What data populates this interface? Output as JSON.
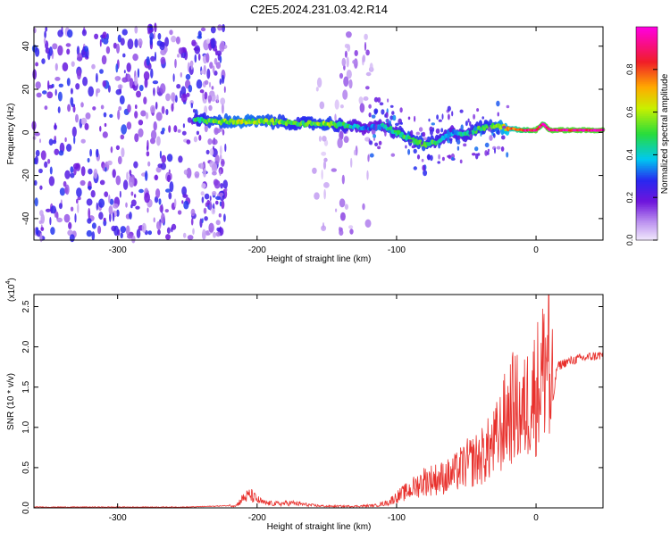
{
  "title": "C2E5.2024.231.03.42.R14",
  "chart_data": [
    {
      "type": "heatmap",
      "xlabel": "Height of straight line (km)",
      "ylabel": "Frequency (Hz)",
      "xlim": [
        -360,
        48
      ],
      "ylim": [
        -50,
        49
      ],
      "x_ticks": [
        -300,
        -200,
        -100,
        0
      ],
      "x_tick_labels": [
        "-300",
        "-200",
        "-100",
        "0"
      ],
      "y_ticks": [
        -40,
        -20,
        0,
        20,
        40
      ],
      "y_tick_labels": [
        "-40",
        "-20",
        "0",
        "20",
        "40"
      ],
      "colorbar": {
        "label": "Normalized spectral amplitude",
        "range": [
          0,
          1
        ],
        "ticks": [
          0.0,
          0.2,
          0.4,
          0.6,
          0.8
        ],
        "tick_labels": [
          "0.0",
          "0.2",
          "0.4",
          "0.6",
          "0.8"
        ]
      },
      "ridge": {
        "x": [
          -245,
          -230,
          -210,
          -190,
          -170,
          -150,
          -135,
          -120,
          -110,
          -100,
          -90,
          -80,
          -70,
          -60,
          -50,
          -40,
          -30,
          -20,
          -10,
          0,
          5,
          10,
          20,
          48
        ],
        "freq_hz": [
          6,
          5,
          5,
          5,
          4,
          4,
          3,
          2,
          3,
          0,
          -3,
          -6,
          -4,
          0,
          -1,
          2,
          3,
          2,
          1,
          1,
          4,
          1,
          1,
          1
        ],
        "amplitude": [
          0.45,
          0.55,
          0.6,
          0.55,
          0.5,
          0.55,
          0.45,
          0.3,
          0.4,
          0.45,
          0.5,
          0.55,
          0.45,
          0.35,
          0.45,
          0.5,
          0.55,
          0.7,
          0.85,
          0.95,
          0.9,
          0.95,
          0.95,
          0.95
        ]
      },
      "noise_regions": [
        {
          "x_range": [
            -360,
            -222
          ],
          "freq_range": [
            -50,
            49
          ],
          "amplitude": 0.15
        },
        {
          "x_range": [
            -240,
            -222
          ],
          "freq_range": [
            -50,
            49
          ],
          "amplitude": 0.08
        },
        {
          "x_range": [
            -160,
            -150
          ],
          "freq_range": [
            -50,
            49
          ],
          "amplitude": 0.06
        },
        {
          "x_range": [
            -145,
            -118
          ],
          "freq_range": [
            -50,
            49
          ],
          "amplitude": 0.08
        }
      ]
    },
    {
      "type": "line",
      "xlabel": "Height of straight line (km)",
      "ylabel": "SNR (10 * v/v)",
      "y_multiplier_label": "(x10",
      "y_multiplier_exp": "4",
      "y_multiplier_close": ")",
      "xlim": [
        -360,
        48
      ],
      "ylim": [
        0,
        2.65
      ],
      "x_ticks": [
        -300,
        -200,
        -100,
        0
      ],
      "x_tick_labels": [
        "-300",
        "-200",
        "-100",
        "0"
      ],
      "y_ticks": [
        0.0,
        0.5,
        1.0,
        1.5,
        2.0,
        2.5
      ],
      "y_tick_labels": [
        "0.0",
        "0.5",
        "1.0",
        "1.5",
        "2.0",
        "2.5"
      ],
      "series": [
        {
          "color": "#e8302c",
          "x": [
            -360,
            -300,
            -250,
            -215,
            -210,
            -205,
            -200,
            -195,
            -185,
            -175,
            -160,
            -150,
            -130,
            -115,
            -105,
            -100,
            -90,
            -80,
            -70,
            -60,
            -50,
            -40,
            -30,
            -25,
            -20,
            -15,
            -10,
            -5,
            0,
            5,
            8,
            10,
            12,
            15,
            20,
            30,
            40,
            48
          ],
          "y": [
            0.01,
            0.01,
            0.01,
            0.03,
            0.12,
            0.16,
            0.1,
            0.06,
            0.05,
            0.06,
            0.03,
            0.02,
            0.02,
            0.03,
            0.07,
            0.12,
            0.2,
            0.3,
            0.32,
            0.36,
            0.48,
            0.55,
            0.7,
            0.85,
            1.05,
            1.12,
            1.0,
            1.2,
            1.3,
            1.5,
            1.7,
            1.0,
            1.3,
            1.75,
            1.8,
            1.85,
            1.88,
            1.9
          ]
        }
      ],
      "grid": false
    }
  ]
}
